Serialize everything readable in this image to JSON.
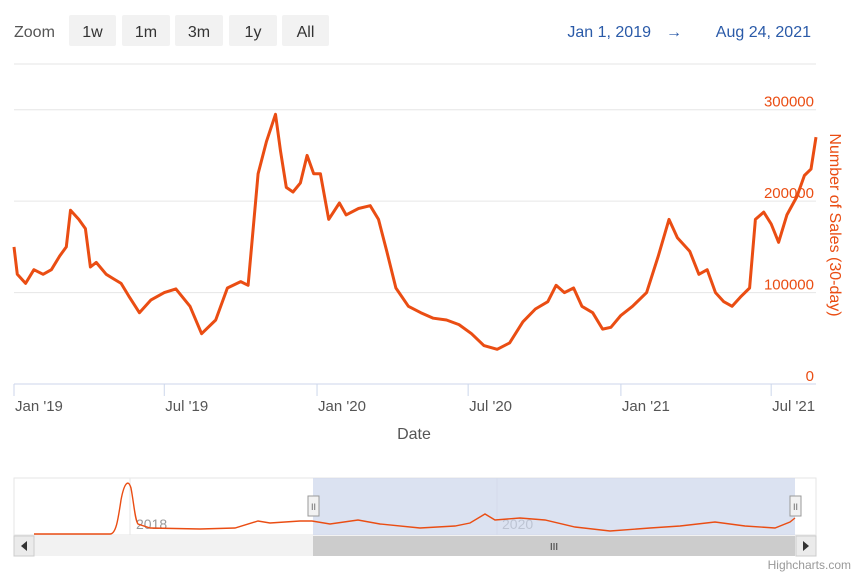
{
  "toolbar": {
    "zoom_label": "Zoom",
    "buttons": [
      "1w",
      "1m",
      "3m",
      "1y",
      "All"
    ],
    "range_from": "Jan 1, 2019",
    "range_arrow": "→",
    "range_to": "Aug 24, 2021"
  },
  "colors": {
    "series": "#ea4d13",
    "accent": "#2a5aa8",
    "navigator_mask": "#ccd6eb"
  },
  "navigator": {
    "labels": [
      "2018",
      "2020"
    ],
    "scroll_grip": "III",
    "left_handle": "II",
    "right_handle": "II"
  },
  "credits": "Highcharts.com",
  "chart_data": {
    "type": "line",
    "xlabel": "Date",
    "ylabel": "Number of Sales (30-day)",
    "x_range": [
      "2019-01-01",
      "2021-08-24"
    ],
    "ylim": [
      0,
      350000
    ],
    "y_ticks": [
      0,
      100000,
      200000,
      300000
    ],
    "y_tick_labels": [
      "0",
      "100000",
      "200000",
      "300000"
    ],
    "x_ticks": [
      "2019-01-01",
      "2019-07-01",
      "2020-01-01",
      "2020-07-01",
      "2021-01-01",
      "2021-07-01"
    ],
    "x_tick_labels": [
      "Jan '19",
      "Jul '19",
      "Jan '20",
      "Jul '20",
      "Jan '21",
      "Jul '21"
    ],
    "grid": true,
    "series": [
      {
        "points": [
          [
            "2019-01-01",
            150000
          ],
          [
            "2019-01-05",
            120000
          ],
          [
            "2019-01-15",
            110000
          ],
          [
            "2019-01-25",
            125000
          ],
          [
            "2019-02-05",
            120000
          ],
          [
            "2019-02-15",
            125000
          ],
          [
            "2019-02-25",
            140000
          ],
          [
            "2019-03-05",
            150000
          ],
          [
            "2019-03-10",
            190000
          ],
          [
            "2019-03-20",
            180000
          ],
          [
            "2019-03-28",
            170000
          ],
          [
            "2019-04-03",
            128000
          ],
          [
            "2019-04-10",
            133000
          ],
          [
            "2019-04-22",
            120000
          ],
          [
            "2019-05-01",
            115000
          ],
          [
            "2019-05-10",
            110000
          ],
          [
            "2019-05-20",
            95000
          ],
          [
            "2019-06-01",
            78000
          ],
          [
            "2019-06-15",
            92000
          ],
          [
            "2019-07-01",
            100000
          ],
          [
            "2019-07-15",
            104000
          ],
          [
            "2019-08-01",
            85000
          ],
          [
            "2019-08-15",
            55000
          ],
          [
            "2019-09-01",
            70000
          ],
          [
            "2019-09-15",
            105000
          ],
          [
            "2019-10-01",
            112000
          ],
          [
            "2019-10-10",
            108000
          ],
          [
            "2019-10-22",
            230000
          ],
          [
            "2019-11-01",
            265000
          ],
          [
            "2019-11-12",
            295000
          ],
          [
            "2019-11-18",
            255000
          ],
          [
            "2019-11-25",
            215000
          ],
          [
            "2019-12-03",
            210000
          ],
          [
            "2019-12-12",
            220000
          ],
          [
            "2019-12-20",
            250000
          ],
          [
            "2019-12-28",
            230000
          ],
          [
            "2020-01-05",
            230000
          ],
          [
            "2020-01-15",
            180000
          ],
          [
            "2020-01-28",
            198000
          ],
          [
            "2020-02-05",
            185000
          ],
          [
            "2020-02-20",
            192000
          ],
          [
            "2020-03-05",
            195000
          ],
          [
            "2020-03-15",
            180000
          ],
          [
            "2020-03-25",
            145000
          ],
          [
            "2020-04-05",
            105000
          ],
          [
            "2020-04-20",
            85000
          ],
          [
            "2020-05-05",
            78000
          ],
          [
            "2020-05-20",
            72000
          ],
          [
            "2020-06-05",
            70000
          ],
          [
            "2020-06-20",
            65000
          ],
          [
            "2020-07-05",
            55000
          ],
          [
            "2020-07-20",
            42000
          ],
          [
            "2020-08-05",
            38000
          ],
          [
            "2020-08-20",
            45000
          ],
          [
            "2020-09-05",
            68000
          ],
          [
            "2020-09-20",
            82000
          ],
          [
            "2020-10-05",
            90000
          ],
          [
            "2020-10-15",
            108000
          ],
          [
            "2020-10-25",
            100000
          ],
          [
            "2020-11-05",
            105000
          ],
          [
            "2020-11-15",
            85000
          ],
          [
            "2020-11-28",
            78000
          ],
          [
            "2020-12-10",
            60000
          ],
          [
            "2020-12-20",
            62000
          ],
          [
            "2021-01-01",
            75000
          ],
          [
            "2021-01-15",
            85000
          ],
          [
            "2021-02-01",
            100000
          ],
          [
            "2021-02-15",
            140000
          ],
          [
            "2021-02-28",
            180000
          ],
          [
            "2021-03-10",
            160000
          ],
          [
            "2021-03-25",
            145000
          ],
          [
            "2021-04-05",
            120000
          ],
          [
            "2021-04-15",
            125000
          ],
          [
            "2021-04-25",
            100000
          ],
          [
            "2021-05-05",
            90000
          ],
          [
            "2021-05-15",
            85000
          ],
          [
            "2021-05-25",
            95000
          ],
          [
            "2021-06-05",
            105000
          ],
          [
            "2021-06-12",
            180000
          ],
          [
            "2021-06-22",
            188000
          ],
          [
            "2021-07-01",
            175000
          ],
          [
            "2021-07-10",
            155000
          ],
          [
            "2021-07-20",
            185000
          ],
          [
            "2021-08-01",
            205000
          ],
          [
            "2021-08-10",
            228000
          ],
          [
            "2021-08-18",
            235000
          ],
          [
            "2021-08-24",
            270000
          ]
        ]
      }
    ]
  }
}
